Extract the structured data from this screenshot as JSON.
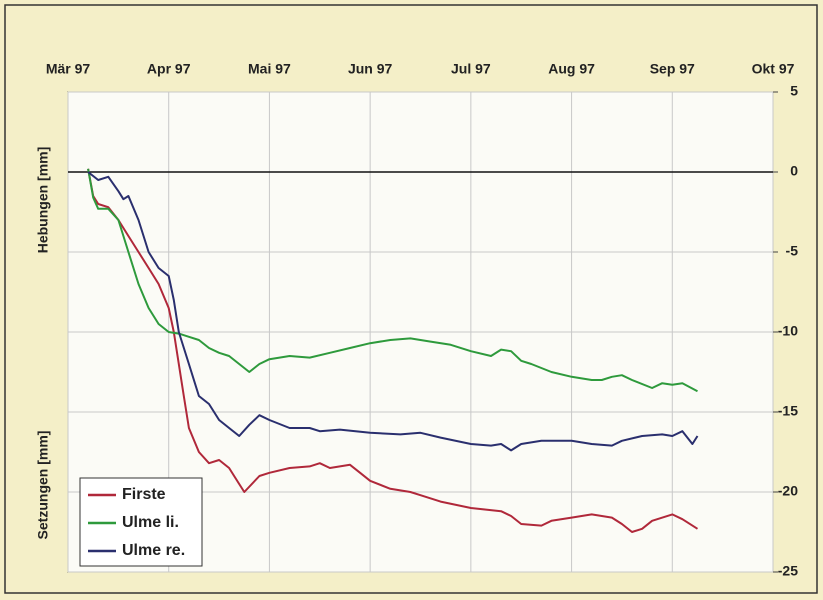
{
  "chart_data": {
    "type": "line",
    "y_label_top": "Hebungen [mm]",
    "y_label_bottom": "Setzungen [mm]",
    "xlim": [
      0,
      7
    ],
    "xticks": [
      {
        "value": 0,
        "label": "Mär 97"
      },
      {
        "value": 1,
        "label": "Apr 97"
      },
      {
        "value": 2,
        "label": "Mai 97"
      },
      {
        "value": 3,
        "label": "Jun 97"
      },
      {
        "value": 4,
        "label": "Jul 97"
      },
      {
        "value": 5,
        "label": "Aug 97"
      },
      {
        "value": 6,
        "label": "Sep 97"
      },
      {
        "value": 7,
        "label": "Okt 97"
      }
    ],
    "ylim": [
      -25,
      5
    ],
    "yticks": [
      5,
      0,
      -5,
      -10,
      -15,
      -20,
      -25
    ],
    "grid": true,
    "legend": "bottom-left",
    "series": [
      {
        "name": "Firste",
        "color": "#b0283a",
        "x": [
          0.2,
          0.25,
          0.3,
          0.4,
          0.5,
          0.6,
          0.7,
          0.8,
          0.9,
          1.0,
          1.05,
          1.1,
          1.15,
          1.2,
          1.3,
          1.4,
          1.5,
          1.6,
          1.7,
          1.75,
          1.9,
          2.0,
          2.2,
          2.4,
          2.5,
          2.6,
          2.8,
          2.9,
          3.0,
          3.2,
          3.4,
          3.5,
          3.7,
          4.0,
          4.3,
          4.4,
          4.5,
          4.7,
          4.8,
          5.0,
          5.2,
          5.4,
          5.5,
          5.6,
          5.7,
          5.8,
          6.0,
          6.1,
          6.25
        ],
        "values": [
          0.2,
          -1.5,
          -2,
          -2.2,
          -3,
          -4,
          -5,
          -6,
          -7,
          -8.5,
          -10,
          -12,
          -14,
          -16,
          -17.5,
          -18.2,
          -18,
          -18.5,
          -19.5,
          -20,
          -19,
          -18.8,
          -18.5,
          -18.4,
          -18.2,
          -18.5,
          -18.3,
          -18.8,
          -19.3,
          -19.8,
          -20,
          -20.2,
          -20.6,
          -21,
          -21.2,
          -21.5,
          -22,
          -22.1,
          -21.8,
          -21.6,
          -21.4,
          -21.6,
          -22,
          -22.5,
          -22.3,
          -21.8,
          -21.4,
          -21.7,
          -22.3
        ]
      },
      {
        "name": "Ulme li.",
        "color": "#2e9a3c",
        "x": [
          0.2,
          0.25,
          0.3,
          0.4,
          0.5,
          0.6,
          0.7,
          0.8,
          0.9,
          1.0,
          1.1,
          1.2,
          1.3,
          1.4,
          1.5,
          1.6,
          1.7,
          1.8,
          1.9,
          2.0,
          2.2,
          2.4,
          2.6,
          2.8,
          3.0,
          3.2,
          3.4,
          3.6,
          3.8,
          4.0,
          4.2,
          4.3,
          4.4,
          4.5,
          4.6,
          4.8,
          5.0,
          5.2,
          5.3,
          5.4,
          5.5,
          5.6,
          5.8,
          5.9,
          6.0,
          6.1,
          6.25
        ],
        "values": [
          0.2,
          -1.6,
          -2.3,
          -2.3,
          -3,
          -5,
          -7,
          -8.5,
          -9.5,
          -10,
          -10.1,
          -10.3,
          -10.5,
          -11,
          -11.3,
          -11.5,
          -12,
          -12.5,
          -12,
          -11.7,
          -11.5,
          -11.6,
          -11.3,
          -11,
          -10.7,
          -10.5,
          -10.4,
          -10.6,
          -10.8,
          -11.2,
          -11.5,
          -11.1,
          -11.2,
          -11.8,
          -12,
          -12.5,
          -12.8,
          -13,
          -13,
          -12.8,
          -12.7,
          -13,
          -13.5,
          -13.2,
          -13.3,
          -13.2,
          -13.7
        ]
      },
      {
        "name": "Ulme re.",
        "color": "#2a2f6e",
        "x": [
          0.2,
          0.3,
          0.4,
          0.5,
          0.55,
          0.6,
          0.7,
          0.8,
          0.9,
          1.0,
          1.05,
          1.1,
          1.2,
          1.3,
          1.4,
          1.5,
          1.6,
          1.7,
          1.8,
          1.9,
          2.0,
          2.2,
          2.4,
          2.5,
          2.7,
          3.0,
          3.3,
          3.5,
          3.7,
          4.0,
          4.2,
          4.3,
          4.4,
          4.5,
          4.7,
          5.0,
          5.2,
          5.4,
          5.5,
          5.7,
          5.9,
          6.0,
          6.1,
          6.2,
          6.25
        ],
        "values": [
          0,
          -0.5,
          -0.3,
          -1.2,
          -1.7,
          -1.5,
          -3,
          -5,
          -6,
          -6.5,
          -8,
          -10,
          -12,
          -14,
          -14.5,
          -15.5,
          -16,
          -16.5,
          -15.8,
          -15.2,
          -15.5,
          -16,
          -16,
          -16.2,
          -16.1,
          -16.3,
          -16.4,
          -16.3,
          -16.6,
          -17,
          -17.1,
          -17,
          -17.4,
          -17,
          -16.8,
          -16.8,
          -17,
          -17.1,
          -16.8,
          -16.5,
          -16.4,
          -16.5,
          -16.2,
          -17,
          -16.5
        ]
      }
    ]
  }
}
